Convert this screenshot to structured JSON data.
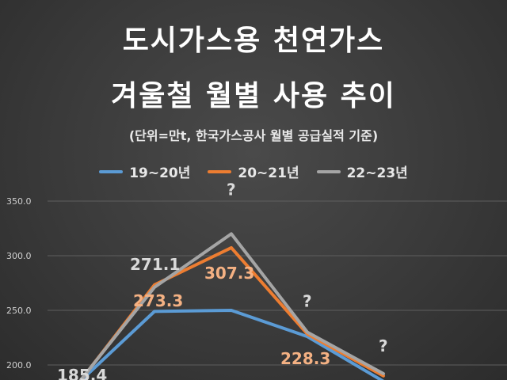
{
  "title_line1": "도시가스용 천연가스",
  "title_line2": "겨울철 월별 사용 추이",
  "subtitle": "(단위=만t, 한국가스공사 월별 공급실적 기준)",
  "colors": {
    "series_19_20": "#5b9bd5",
    "series_20_21": "#ed7d31",
    "series_22_23": "#a5a5a5",
    "label_light": "#d9d9d9",
    "label_orange": "#f4b183"
  },
  "chart_data": {
    "type": "line",
    "ylim": [
      150,
      350
    ],
    "yticks": [
      "350.0",
      "300.0",
      "250.0",
      "200.0"
    ],
    "ytick_values": [
      350,
      300,
      250,
      200
    ],
    "grid": true,
    "legend_position": "top",
    "series": [
      {
        "name": "19~20년",
        "values": [
          185,
          249,
          250,
          226,
          185
        ]
      },
      {
        "name": "20~21년",
        "values": [
          185,
          273.3,
          307.3,
          228.3,
          190
        ]
      },
      {
        "name": "22~23년",
        "values": [
          185.4,
          271.1,
          320,
          230,
          192
        ]
      }
    ],
    "data_labels": [
      {
        "text": "185.4",
        "series": 2,
        "index": 0
      },
      {
        "text": "271.1",
        "series": 2,
        "index": 1
      },
      {
        "text": "273.3",
        "series": 1,
        "index": 1
      },
      {
        "text": "307.3",
        "series": 1,
        "index": 2
      },
      {
        "text": "228.3",
        "series": 1,
        "index": 3
      }
    ],
    "annotations": [
      "?",
      "?",
      "?"
    ]
  }
}
